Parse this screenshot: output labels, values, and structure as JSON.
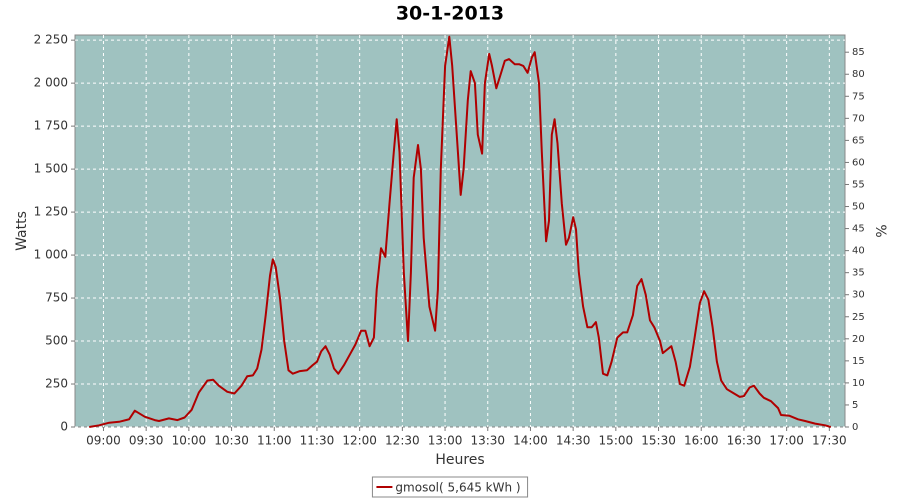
{
  "chart_data": {
    "type": "line",
    "title": "30-1-2013",
    "x_label": "Heures",
    "y_label": "Watts",
    "y2_label": "%",
    "xlim": [
      "08:40",
      "17:41"
    ],
    "xticks": [
      "09:00",
      "09:30",
      "10:00",
      "10:30",
      "11:00",
      "11:30",
      "12:00",
      "12:30",
      "13:00",
      "13:30",
      "14:00",
      "14:30",
      "15:00",
      "15:30",
      "16:00",
      "16:30",
      "17:00",
      "17:30"
    ],
    "ylim": [
      0,
      2280
    ],
    "yticks": [
      0,
      250,
      500,
      750,
      {
        "value": 1000,
        "label": "1 000"
      },
      {
        "value": 1250,
        "label": "1 250"
      },
      {
        "value": 1500,
        "label": "1 500"
      },
      {
        "value": 1750,
        "label": "1 750"
      },
      {
        "value": 2000,
        "label": "2 000"
      },
      {
        "value": 2250,
        "label": "2 250"
      }
    ],
    "y2lim": [
      0,
      88.9
    ],
    "y2ticks": [
      0,
      5,
      10,
      15,
      20,
      25,
      30,
      35,
      40,
      45,
      50,
      55,
      60,
      65,
      70,
      75,
      80,
      85
    ],
    "grid": true,
    "background": "#9fc2c0",
    "x": [
      "08:50",
      "08:57",
      "09:04",
      "09:11",
      "09:18",
      "09:22",
      "09:29",
      "09:36",
      "09:39",
      "09:46",
      "09:52",
      "09:57",
      "10:02",
      "10:07",
      "10:13",
      "10:17",
      "10:21",
      "10:27",
      "10:32",
      "10:37",
      "10:41",
      "10:45",
      "10:48",
      "10:51",
      "10:54",
      "10:57",
      "10:59",
      "11:01",
      "11:04",
      "11:07",
      "11:10",
      "11:13",
      "11:18",
      "11:23",
      "11:27",
      "11:30",
      "11:33",
      "11:36",
      "11:39",
      "11:42",
      "11:45",
      "11:49",
      "11:53",
      "11:57",
      "12:01",
      "12:04",
      "12:07",
      "12:10",
      "12:12",
      "12:15",
      "12:18",
      "12:21",
      "12:24",
      "12:26",
      "12:28",
      "12:31",
      "12:34",
      "12:36",
      "12:38",
      "12:41",
      "12:43",
      "12:45",
      "12:49",
      "12:53",
      "12:55",
      "12:57",
      "13:00",
      "13:03",
      "13:05",
      "13:09",
      "13:11",
      "13:13",
      "13:16",
      "13:18",
      "13:21",
      "13:23",
      "13:26",
      "13:28",
      "13:31",
      "13:33",
      "13:36",
      "13:39",
      "13:42",
      "13:45",
      "13:49",
      "13:52",
      "13:55",
      "13:58",
      "14:01",
      "14:03",
      "14:06",
      "14:08",
      "14:11",
      "14:13",
      "14:15",
      "14:17",
      "14:19",
      "14:22",
      "14:25",
      "14:27",
      "14:30",
      "14:32",
      "14:34",
      "14:37",
      "14:40",
      "14:43",
      "14:46",
      "14:48",
      "14:51",
      "14:54",
      "14:57",
      "15:01",
      "15:05",
      "15:08",
      "15:12",
      "15:15",
      "15:18",
      "15:21",
      "15:24",
      "15:27",
      "15:31",
      "15:33",
      "15:36",
      "15:39",
      "15:42",
      "15:45",
      "15:48",
      "15:52",
      "15:55",
      "15:59",
      "16:02",
      "16:05",
      "16:08",
      "16:11",
      "16:14",
      "16:18",
      "16:22",
      "16:27",
      "16:30",
      "16:34",
      "16:37",
      "16:41",
      "16:44",
      "16:49",
      "16:54",
      "16:56",
      "17:02",
      "17:08",
      "17:13",
      "17:20",
      "17:27",
      "17:31"
    ],
    "series": [
      {
        "name": "gmosol( 5,645 kWh )",
        "color": "#b00000",
        "values": [
          0,
          10,
          25,
          30,
          45,
          95,
          60,
          40,
          35,
          50,
          40,
          55,
          100,
          200,
          270,
          275,
          240,
          205,
          195,
          240,
          295,
          300,
          340,
          450,
          650,
          880,
          975,
          930,
          750,
          500,
          330,
          310,
          325,
          330,
          360,
          380,
          440,
          470,
          420,
          340,
          310,
          360,
          420,
          480,
          560,
          560,
          470,
          520,
          800,
          1040,
          990,
          1300,
          1600,
          1790,
          1600,
          900,
          500,
          900,
          1450,
          1640,
          1500,
          1100,
          700,
          560,
          800,
          1500,
          2100,
          2270,
          2100,
          1600,
          1350,
          1500,
          1900,
          2070,
          2000,
          1700,
          1590,
          2000,
          2170,
          2100,
          1970,
          2050,
          2130,
          2140,
          2110,
          2110,
          2100,
          2060,
          2150,
          2180,
          2000,
          1600,
          1080,
          1200,
          1700,
          1790,
          1650,
          1300,
          1060,
          1100,
          1220,
          1150,
          900,
          700,
          580,
          580,
          610,
          520,
          310,
          300,
          380,
          520,
          550,
          550,
          650,
          820,
          860,
          770,
          620,
          580,
          500,
          430,
          450,
          470,
          380,
          250,
          240,
          350,
          500,
          720,
          790,
          740,
          580,
          380,
          270,
          220,
          200,
          175,
          180,
          230,
          240,
          195,
          170,
          150,
          110,
          70,
          65,
          45,
          35,
          20,
          10,
          0
        ]
      }
    ]
  }
}
